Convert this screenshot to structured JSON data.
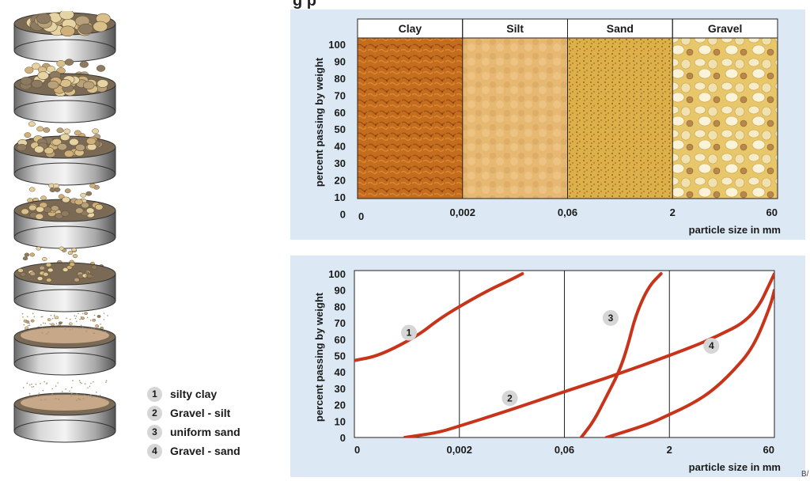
{
  "title_fragment": "g  p",
  "grain_chart": {
    "headers": [
      "Clay",
      "Silt",
      "Sand",
      "Gravel"
    ],
    "colors": {
      "clay": "#c46d1e",
      "silt": "#e6b872",
      "sand": "#ddb04a",
      "gravel": "#f0d890"
    }
  },
  "chart_data": [
    {
      "type": "table",
      "columns": [
        "Clay",
        "Silt",
        "Sand",
        "Gravel"
      ],
      "ylabel": "percent passing by weight",
      "xlabel": "particle size in mm",
      "y_ticks": [
        "100",
        "90",
        "80",
        "70",
        "60",
        "50",
        "40",
        "30",
        "20",
        "10",
        "0"
      ],
      "x_ticks": [
        "0",
        "0,002",
        "0,06",
        "2",
        "60"
      ]
    },
    {
      "type": "line",
      "ylabel": "percent passing by weight",
      "xlabel": "particle size in mm",
      "y_ticks": [
        "100",
        "90",
        "80",
        "70",
        "60",
        "50",
        "40",
        "30",
        "20",
        "10",
        "0"
      ],
      "x_ticks": [
        "0",
        "0,002",
        "0,06",
        "2",
        "60"
      ],
      "ylim": [
        0,
        100
      ],
      "series": [
        {
          "label": "1",
          "color": "#c8341a",
          "points": [
            [
              0.0,
              47
            ],
            [
              0.06,
              50
            ],
            [
              0.15,
              62
            ],
            [
              0.2,
              72
            ],
            [
              0.25,
              80
            ],
            [
              0.32,
              90
            ],
            [
              0.37,
              96
            ],
            [
              0.4,
              100
            ]
          ]
        },
        {
          "label": "2",
          "color": "#c8341a",
          "points": [
            [
              0.12,
              0
            ],
            [
              0.2,
              3
            ],
            [
              0.25,
              7
            ],
            [
              0.35,
              15
            ],
            [
              0.5,
              28
            ],
            [
              0.62,
              38
            ],
            [
              0.75,
              50
            ],
            [
              0.85,
              60
            ],
            [
              0.95,
              73
            ],
            [
              1.0,
              100
            ]
          ]
        },
        {
          "label": "3",
          "color": "#c8341a",
          "points": [
            [
              0.54,
              0
            ],
            [
              0.57,
              10
            ],
            [
              0.6,
              25
            ],
            [
              0.63,
              40
            ],
            [
              0.65,
              55
            ],
            [
              0.67,
              75
            ],
            [
              0.7,
              92
            ],
            [
              0.73,
              100
            ]
          ]
        },
        {
          "label": "4",
          "color": "#c8341a",
          "points": [
            [
              0.6,
              0
            ],
            [
              0.7,
              8
            ],
            [
              0.75,
              14
            ],
            [
              0.8,
              20
            ],
            [
              0.85,
              28
            ],
            [
              0.9,
              40
            ],
            [
              0.95,
              55
            ],
            [
              0.99,
              80
            ],
            [
              1.0,
              90
            ]
          ]
        }
      ]
    }
  ],
  "legend": [
    {
      "num": "1",
      "text": "silty clay"
    },
    {
      "num": "2",
      "text": "Gravel - silt"
    },
    {
      "num": "3",
      "text": "uniform sand"
    },
    {
      "num": "4",
      "text": "Gravel - sand"
    }
  ],
  "corner_text": "B/"
}
